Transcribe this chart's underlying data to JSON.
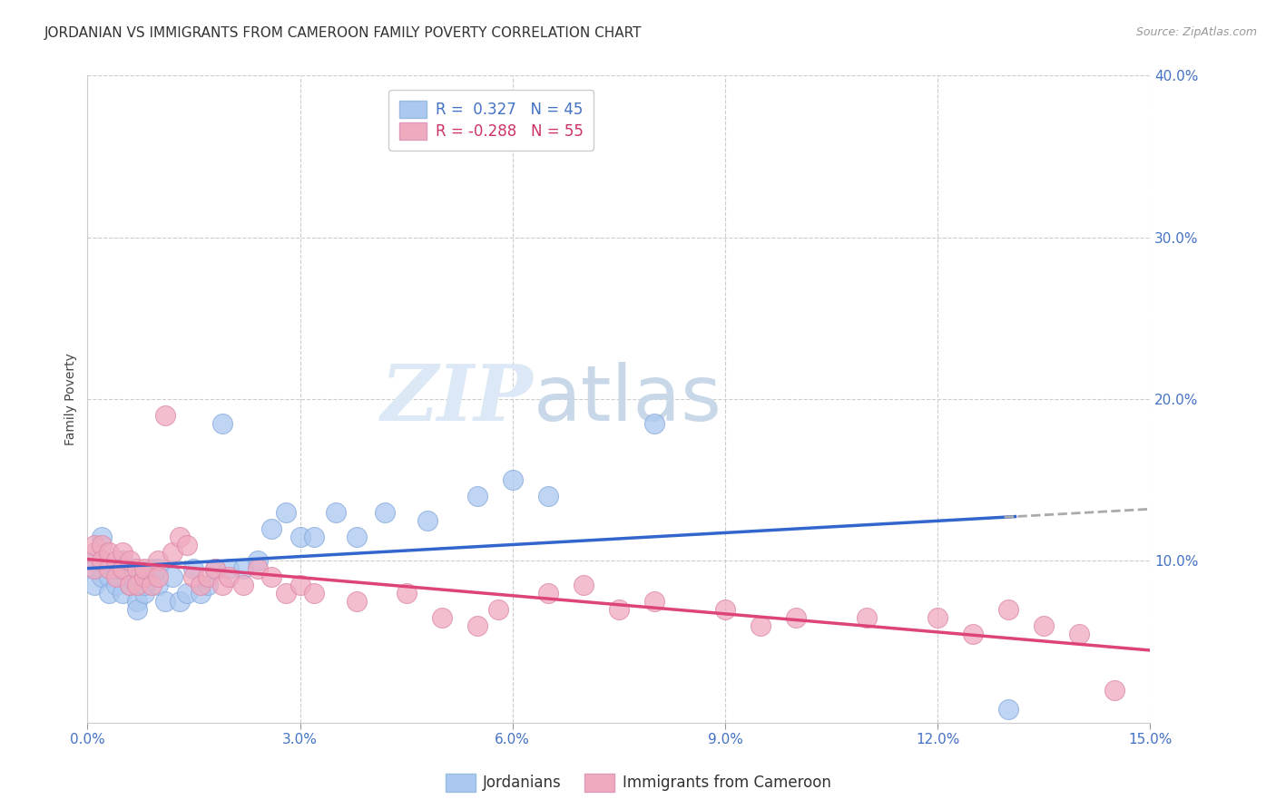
{
  "title": "JORDANIAN VS IMMIGRANTS FROM CAMEROON FAMILY POVERTY CORRELATION CHART",
  "source": "Source: ZipAtlas.com",
  "ylabel": "Family Poverty",
  "xlim": [
    0.0,
    0.15
  ],
  "ylim": [
    0.0,
    0.4
  ],
  "xticks": [
    0.0,
    0.03,
    0.06,
    0.09,
    0.12,
    0.15
  ],
  "yticks": [
    0.0,
    0.1,
    0.2,
    0.3,
    0.4
  ],
  "xtick_labels": [
    "0.0%",
    "3.0%",
    "6.0%",
    "9.0%",
    "12.0%",
    "15.0%"
  ],
  "ytick_labels": [
    "",
    "10.0%",
    "20.0%",
    "30.0%",
    "40.0%"
  ],
  "legend_labels": [
    "Jordanians",
    "Immigrants from Cameroon"
  ],
  "blue_color": "#aac8f0",
  "pink_color": "#f0aabe",
  "blue_line_color": "#3366cc",
  "pink_line_color": "#dd4477",
  "trend_extend_color": "#aaaaaa",
  "background_color": "#ffffff",
  "watermark_zip": "ZIP",
  "watermark_atlas": "atlas",
  "title_fontsize": 11,
  "axis_label_fontsize": 10,
  "tick_fontsize": 11,
  "blue_points_x": [
    0.001,
    0.001,
    0.001,
    0.002,
    0.002,
    0.003,
    0.003,
    0.004,
    0.004,
    0.005,
    0.005,
    0.006,
    0.006,
    0.007,
    0.007,
    0.008,
    0.008,
    0.009,
    0.01,
    0.01,
    0.011,
    0.012,
    0.013,
    0.014,
    0.015,
    0.016,
    0.017,
    0.018,
    0.019,
    0.02,
    0.022,
    0.024,
    0.026,
    0.028,
    0.03,
    0.032,
    0.035,
    0.038,
    0.042,
    0.048,
    0.055,
    0.06,
    0.065,
    0.08,
    0.13
  ],
  "blue_points_y": [
    0.095,
    0.1,
    0.085,
    0.115,
    0.09,
    0.09,
    0.08,
    0.085,
    0.095,
    0.1,
    0.08,
    0.09,
    0.085,
    0.075,
    0.07,
    0.08,
    0.085,
    0.095,
    0.085,
    0.095,
    0.075,
    0.09,
    0.075,
    0.08,
    0.095,
    0.08,
    0.085,
    0.095,
    0.185,
    0.095,
    0.095,
    0.1,
    0.12,
    0.13,
    0.115,
    0.115,
    0.13,
    0.115,
    0.13,
    0.125,
    0.14,
    0.15,
    0.14,
    0.185,
    0.008
  ],
  "pink_points_x": [
    0.001,
    0.001,
    0.001,
    0.002,
    0.002,
    0.003,
    0.003,
    0.004,
    0.004,
    0.005,
    0.005,
    0.006,
    0.006,
    0.007,
    0.007,
    0.008,
    0.008,
    0.009,
    0.01,
    0.01,
    0.011,
    0.012,
    0.013,
    0.014,
    0.015,
    0.016,
    0.017,
    0.018,
    0.019,
    0.02,
    0.022,
    0.024,
    0.026,
    0.028,
    0.03,
    0.032,
    0.038,
    0.045,
    0.05,
    0.055,
    0.058,
    0.065,
    0.07,
    0.075,
    0.08,
    0.09,
    0.095,
    0.1,
    0.11,
    0.12,
    0.125,
    0.13,
    0.135,
    0.14,
    0.145
  ],
  "pink_points_y": [
    0.105,
    0.11,
    0.095,
    0.11,
    0.1,
    0.105,
    0.095,
    0.1,
    0.09,
    0.105,
    0.095,
    0.1,
    0.085,
    0.095,
    0.085,
    0.09,
    0.095,
    0.085,
    0.1,
    0.09,
    0.19,
    0.105,
    0.115,
    0.11,
    0.09,
    0.085,
    0.09,
    0.095,
    0.085,
    0.09,
    0.085,
    0.095,
    0.09,
    0.08,
    0.085,
    0.08,
    0.075,
    0.08,
    0.065,
    0.06,
    0.07,
    0.08,
    0.085,
    0.07,
    0.075,
    0.07,
    0.06,
    0.065,
    0.065,
    0.065,
    0.055,
    0.07,
    0.06,
    0.055,
    0.02
  ]
}
